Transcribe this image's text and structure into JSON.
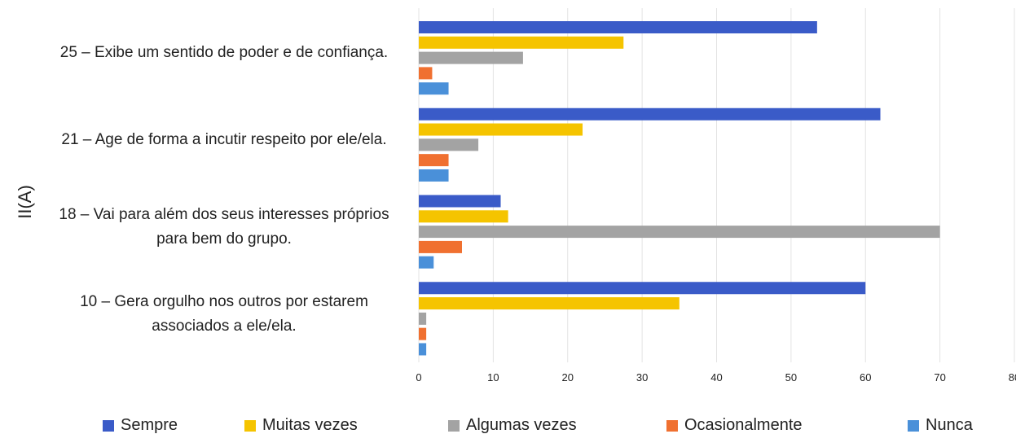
{
  "chart_data": {
    "type": "bar",
    "orientation": "horizontal",
    "y_axis_label": "II(A)",
    "categories": [
      "25 – Exibe um sentido de poder e de confiança.",
      "21 – Age de forma a incutir respeito por ele/ela.",
      "18 – Vai para além dos seus interesses próprios para bem do grupo.",
      "10 – Gera orgulho nos outros por estarem associados a ele/ela."
    ],
    "series": [
      {
        "name": "Sempre",
        "color": "#3a5bc8",
        "values": [
          53.5,
          62,
          11,
          60
        ]
      },
      {
        "name": "Muitas vezes",
        "color": "#f5c400",
        "values": [
          27.5,
          22,
          12,
          35
        ]
      },
      {
        "name": "Algumas vezes",
        "color": "#a3a3a3",
        "values": [
          14,
          8,
          70,
          1
        ]
      },
      {
        "name": "Ocasionalmente",
        "color": "#f07030",
        "values": [
          1.8,
          4,
          5.8,
          1
        ]
      },
      {
        "name": "Nunca",
        "color": "#4a90d9",
        "values": [
          4,
          4,
          2,
          1
        ]
      }
    ],
    "xlim": [
      0,
      80
    ],
    "xticks": [
      0,
      10,
      20,
      30,
      40,
      50,
      60,
      70,
      80
    ],
    "grid": true
  }
}
